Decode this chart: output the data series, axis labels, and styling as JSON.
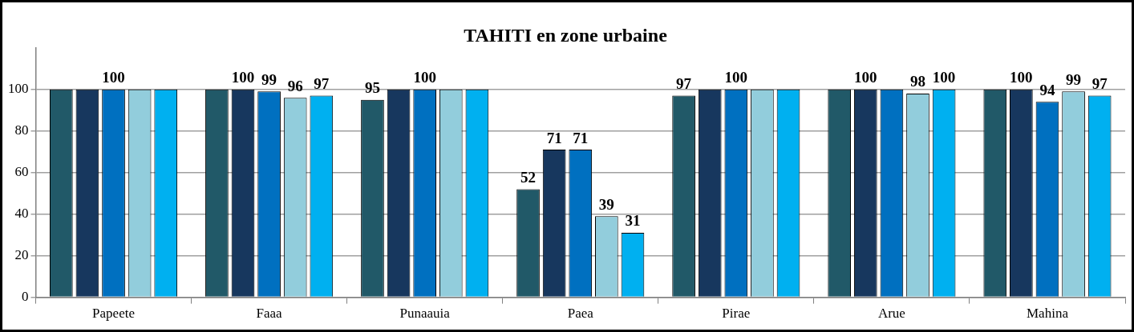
{
  "chart_data": {
    "type": "bar",
    "title": "TAHITI en zone urbaine",
    "categories": [
      "Papeete",
      "Faaa",
      "Punaauia",
      "Paea",
      "Pirae",
      "Arue",
      "Mahina"
    ],
    "series": [
      {
        "color": "#215968",
        "values": [
          100,
          100,
          95,
          52,
          97,
          100,
          100
        ],
        "value_labels": [
          null,
          null,
          "95",
          "52",
          "97",
          null,
          null
        ]
      },
      {
        "color": "#17375e",
        "values": [
          100,
          100,
          100,
          71,
          100,
          100,
          100
        ],
        "value_labels": [
          null,
          "100",
          null,
          "71",
          null,
          "100",
          "100"
        ]
      },
      {
        "color": "#0070c0",
        "values": [
          100,
          99,
          100,
          71,
          100,
          100,
          94
        ],
        "value_labels": [
          "100",
          "99",
          "100",
          "71",
          "100",
          null,
          "94"
        ]
      },
      {
        "color": "#92cddc",
        "values": [
          100,
          96,
          100,
          39,
          100,
          98,
          99
        ],
        "value_labels": [
          null,
          "96",
          null,
          "39",
          null,
          "98",
          "99"
        ]
      },
      {
        "color": "#00b0f0",
        "values": [
          100,
          97,
          100,
          31,
          100,
          100,
          97
        ],
        "value_labels": [
          null,
          "97",
          null,
          "31",
          null,
          "100",
          "97"
        ]
      }
    ],
    "ylim": [
      0,
      120
    ],
    "yticks": [
      0,
      20,
      40,
      60,
      80,
      100
    ],
    "grid": "y",
    "legend": false
  }
}
